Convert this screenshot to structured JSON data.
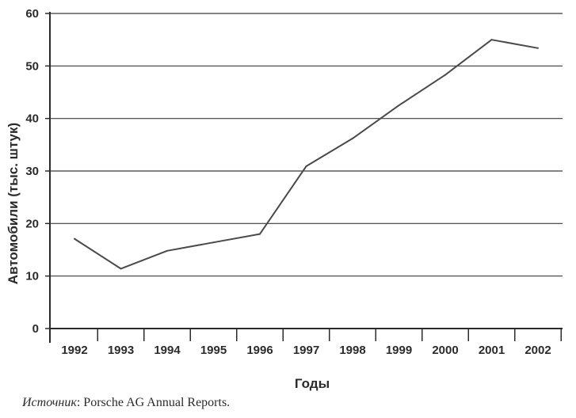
{
  "chart_data": {
    "type": "line",
    "x": [
      "1992",
      "1993",
      "1994",
      "1995",
      "1996",
      "1997",
      "1998",
      "1999",
      "2000",
      "2001",
      "2002"
    ],
    "series": [
      {
        "values": [
          17.1,
          11.4,
          14.8,
          16.4,
          18.0,
          30.9,
          36.2,
          42.5,
          48.3,
          55.0,
          53.4
        ]
      }
    ],
    "xlabel": "Годы",
    "ylabel": "Автомобили (тыс. штук)",
    "ylim": [
      0,
      60
    ],
    "yticks": [
      0,
      10,
      20,
      30,
      40,
      50,
      60
    ],
    "grid": "horizontal",
    "colors": {
      "line": "#4a4a4a",
      "grid": "#3a3a3a",
      "axis": "#2b2b2b"
    }
  },
  "source": {
    "prefix": "Источник",
    "text": ": Porsche AG Annual Reports."
  }
}
